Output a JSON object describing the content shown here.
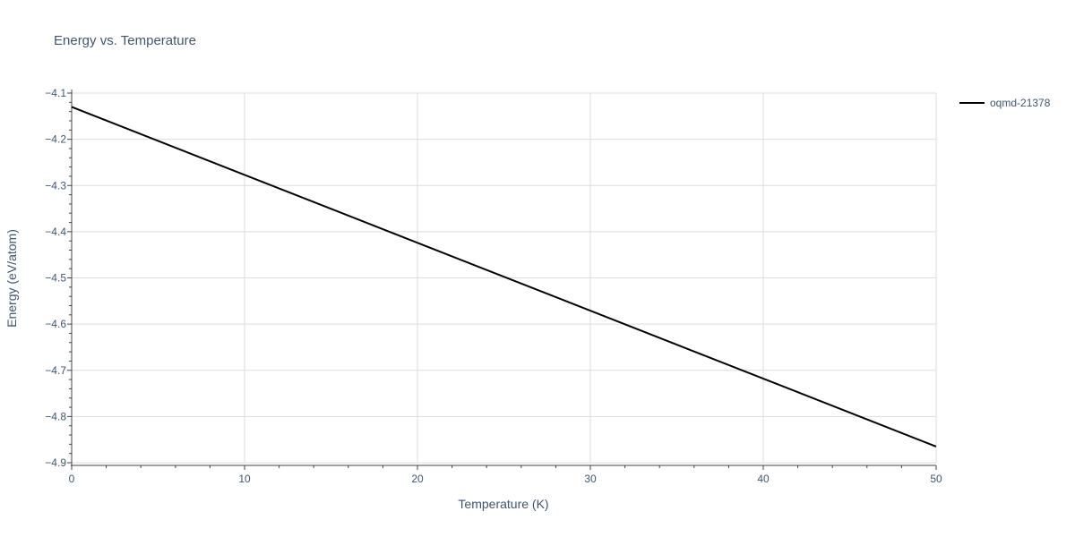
{
  "chart_data": {
    "type": "line",
    "title": "Energy vs. Temperature",
    "xlabel": "Temperature (K)",
    "ylabel": "Energy (eV/atom)",
    "xlim": [
      0,
      50
    ],
    "ylim": [
      -4.9,
      -4.1
    ],
    "xticks": [
      0,
      10,
      20,
      30,
      40,
      50
    ],
    "yticks": [
      -4.1,
      -4.2,
      -4.3,
      -4.4,
      -4.5,
      -4.6,
      -4.7,
      -4.8,
      -4.9
    ],
    "xtick_labels": [
      "0",
      "10",
      "20",
      "30",
      "40",
      "50"
    ],
    "ytick_labels": [
      "−4.1",
      "−4.2",
      "−4.3",
      "−4.4",
      "−4.5",
      "−4.6",
      "−4.7",
      "−4.8",
      "−4.9"
    ],
    "grid": true,
    "legend_position": "top-right",
    "series": [
      {
        "name": "oqmd-21378",
        "color": "#000000",
        "x": [
          0,
          50
        ],
        "y": [
          -4.13,
          -4.865
        ]
      }
    ]
  }
}
